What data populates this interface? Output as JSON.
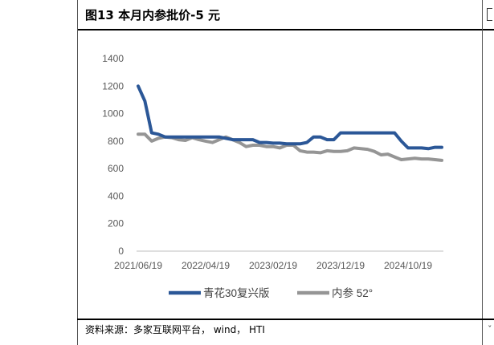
{
  "figure": {
    "title": "图13 本月内参批价-5 元",
    "source": "资料来源：多家互联网平台， wind， HTI"
  },
  "chart_data": {
    "type": "line",
    "x_tick_labels": [
      "2021/06/19",
      "2022/04/19",
      "2023/02/19",
      "2023/12/19",
      "2024/10/19"
    ],
    "ylim": [
      0,
      1400
    ],
    "y_ticks": [
      0,
      200,
      400,
      600,
      800,
      1000,
      1200,
      1400
    ],
    "grid": false,
    "legend_position": "bottom",
    "x": [
      "2021/06",
      "2021/07",
      "2021/08",
      "2021/09",
      "2021/10",
      "2021/11",
      "2021/12",
      "2022/01",
      "2022/02",
      "2022/03",
      "2022/04",
      "2022/05",
      "2022/06",
      "2022/07",
      "2022/08",
      "2022/09",
      "2022/10",
      "2022/11",
      "2022/12",
      "2023/01",
      "2023/02",
      "2023/03",
      "2023/04",
      "2023/05",
      "2023/06",
      "2023/07",
      "2023/08",
      "2023/09",
      "2023/10",
      "2023/11",
      "2023/12",
      "2024/01",
      "2024/02",
      "2024/03",
      "2024/04",
      "2024/05",
      "2024/06",
      "2024/07",
      "2024/08",
      "2024/09",
      "2024/10",
      "2024/11",
      "2024/12",
      "2025/01",
      "2025/02",
      "2025/03"
    ],
    "series": [
      {
        "name": "青花30复兴版",
        "color": "#2b5797",
        "values": [
          1200,
          1090,
          860,
          850,
          830,
          830,
          830,
          830,
          830,
          830,
          830,
          830,
          830,
          820,
          810,
          810,
          810,
          810,
          790,
          790,
          785,
          785,
          780,
          780,
          780,
          790,
          830,
          830,
          810,
          810,
          860,
          860,
          860,
          860,
          860,
          860,
          860,
          860,
          860,
          800,
          750,
          750,
          750,
          745,
          755,
          755
        ]
      },
      {
        "name": "内参 52°",
        "color": "#959595",
        "values": [
          850,
          850,
          800,
          820,
          830,
          825,
          810,
          805,
          825,
          810,
          800,
          790,
          810,
          830,
          810,
          790,
          760,
          770,
          770,
          760,
          760,
          750,
          770,
          770,
          730,
          720,
          720,
          715,
          730,
          725,
          725,
          730,
          750,
          745,
          740,
          725,
          700,
          705,
          685,
          665,
          670,
          675,
          670,
          670,
          665,
          660
        ]
      }
    ]
  }
}
